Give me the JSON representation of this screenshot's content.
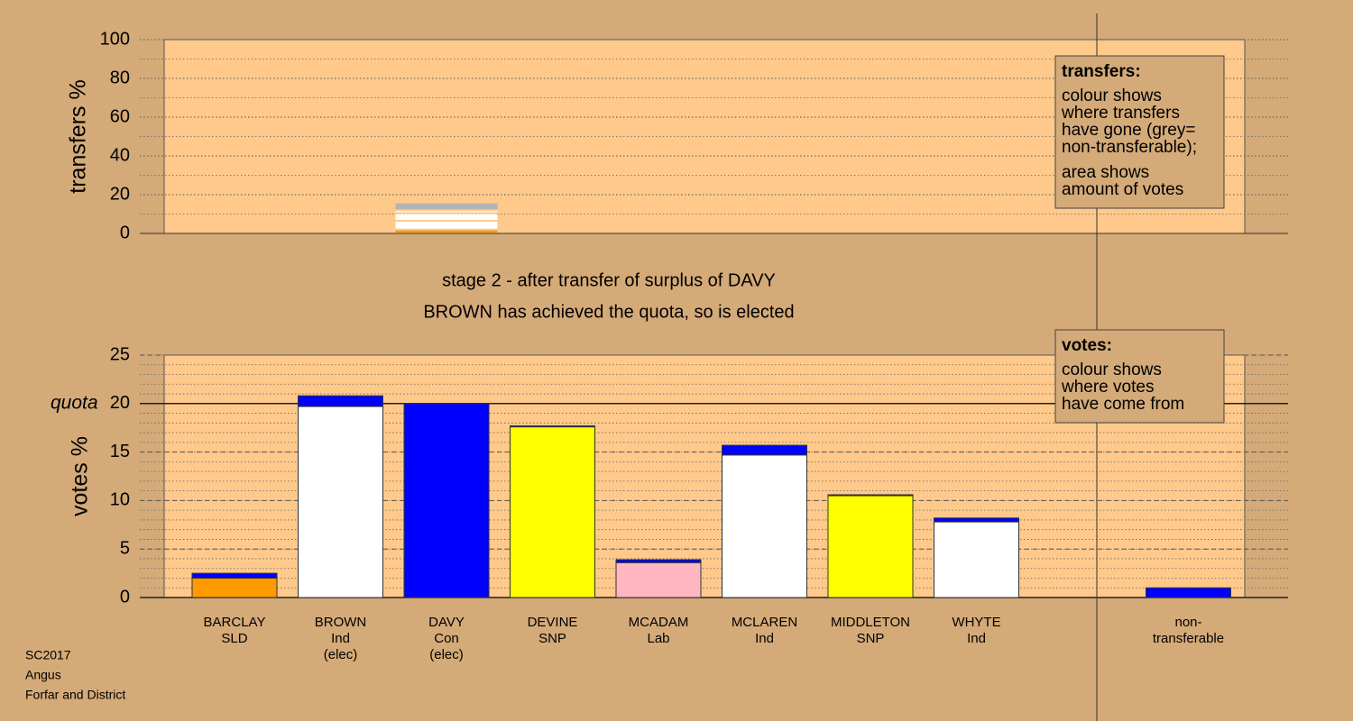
{
  "chart_data": [
    {
      "type": "stacked-column",
      "ylabel": "transfers %",
      "ylim": [
        0,
        100
      ],
      "yticks": [
        0,
        20,
        40,
        60,
        80,
        100
      ],
      "minor_grid_step": 10,
      "values": [
        2,
        4.5,
        4,
        1.5,
        4
      ],
      "colors": [
        "#ff9900",
        "#ffffff",
        "#ffffff",
        "#ffffff",
        "#b3b3b3"
      ],
      "note": {
        "title": "transfers:",
        "paragraphs": [
          [
            "colour shows",
            "where transfers",
            "have gone (grey=",
            "non-transferable);"
          ],
          [
            "area shows",
            "amount of votes"
          ]
        ]
      }
    },
    {
      "type": "bar",
      "subtitle": [
        "stage 2 - after transfer of surplus of DAVY",
        "BROWN has achieved the quota, so is elected"
      ],
      "ylabel": "votes %",
      "ylim": [
        0,
        25
      ],
      "yticks": [
        0,
        5,
        10,
        15,
        {
          "value": 20,
          "label": "quota 20"
        },
        25
      ],
      "quota": {
        "value": 20,
        "label": "quota"
      },
      "minor_grid_step": 1,
      "categories": [
        [
          "BARCLAY",
          "SLD"
        ],
        [
          "BROWN",
          "Ind",
          "(elec)"
        ],
        [
          "DAVY",
          "Con",
          "(elec)"
        ],
        [
          "DEVINE",
          "SNP"
        ],
        [
          "MCADAM",
          "Lab"
        ],
        [
          "MCLAREN",
          "Ind"
        ],
        [
          "MIDDLETON",
          "SNP"
        ],
        [
          "WHYTE",
          "Ind"
        ],
        null,
        [
          "non-",
          "transferable"
        ]
      ],
      "series": [
        {
          "values": [
            2.0,
            19.7,
            20.0,
            17.6,
            3.6,
            14.7,
            10.5,
            7.8,
            null,
            null
          ],
          "colors": [
            "#ff9900",
            "#ffffff",
            "#0000ff",
            "#ffff00",
            "#ffb6c1",
            "#ffffff",
            "#ffff00",
            "#ffffff",
            null,
            null
          ]
        },
        {
          "color": "#0000ff",
          "values": [
            0.5,
            1.1,
            0,
            0.1,
            0.3,
            1.0,
            0.1,
            0.4,
            null,
            1.0
          ]
        }
      ],
      "note": {
        "title": "votes:",
        "paragraphs": [
          [
            "colour shows",
            "where votes",
            "have come from"
          ]
        ]
      }
    }
  ],
  "footer": [
    "SC2017",
    "Angus",
    "Forfar and District"
  ]
}
